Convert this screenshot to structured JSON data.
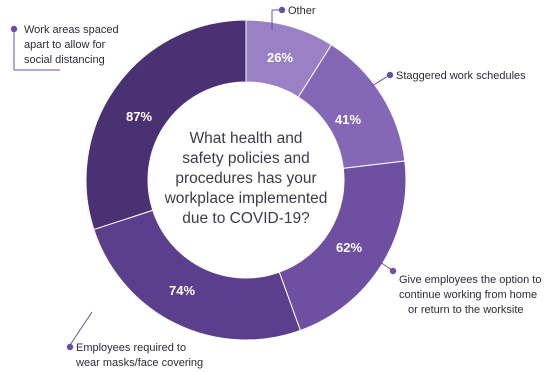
{
  "chart_data": {
    "type": "donut",
    "title": "What health and safety policies and procedures has your workplace implemented due to COVID-19?",
    "title_lines": [
      "What health and",
      "safety policies and",
      "procedures has your",
      "workplace implemented",
      "due to COVID-19?"
    ],
    "slices": [
      {
        "name": "Other",
        "value": 26,
        "label": "26%",
        "color": "#9a80c4",
        "callout": [
          "Other"
        ]
      },
      {
        "name": "Staggered work schedules",
        "value": 41,
        "label": "41%",
        "color": "#8568b5",
        "callout": [
          "Staggered work schedules"
        ]
      },
      {
        "name": "Give employees the option to continue working from home or return to the worksite",
        "value": 62,
        "label": "62%",
        "color": "#6f4fa1",
        "callout": [
          "Give employees the option to",
          "continue working from home",
          "or return to the worksite"
        ]
      },
      {
        "name": "Employees required to wear masks/face covering",
        "value": 74,
        "label": "74%",
        "color": "#5c3f8c",
        "callout": [
          "Employees required to",
          "wear masks/face covering"
        ]
      },
      {
        "name": "Work areas spaced apart to allow for social distancing",
        "value": 87,
        "label": "87%",
        "color": "#4a3173",
        "callout": [
          "Work areas spaced",
          "apart to allow for",
          "social distancing"
        ]
      }
    ],
    "callout_color": "#6b4fa3"
  }
}
